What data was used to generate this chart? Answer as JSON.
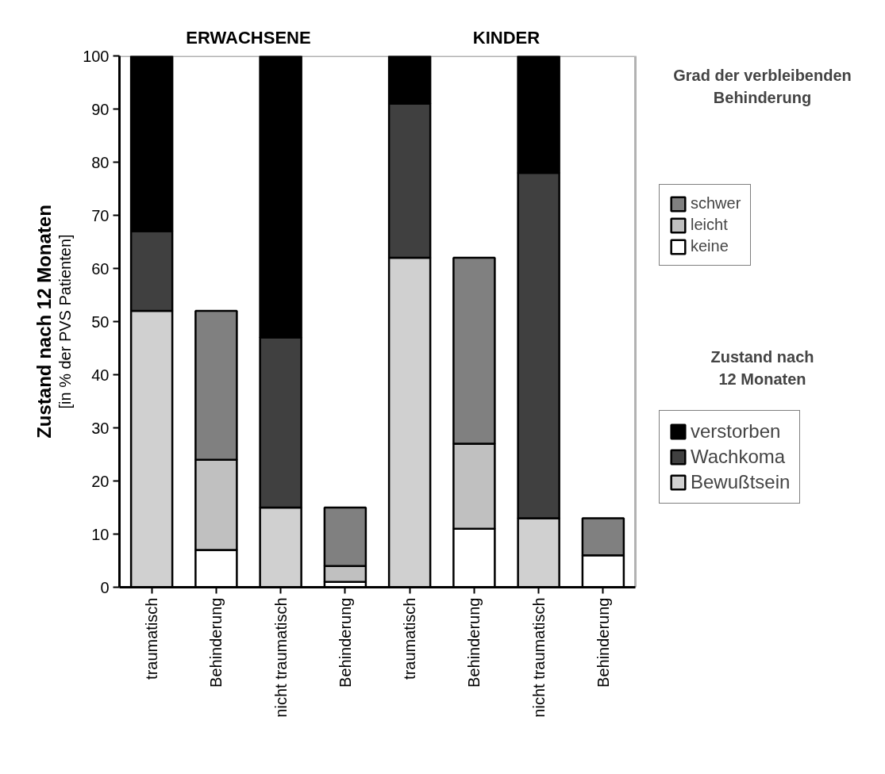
{
  "chart_data": {
    "type": "bar",
    "stacked": true,
    "categories": [
      "traumatisch",
      "Behinderung",
      "nicht traumatisch",
      "Behinderung",
      "traumatisch",
      "Behinderung",
      "nicht traumatisch",
      "Behinderung"
    ],
    "ylabel": "Zustand nach 12 Monaten",
    "annotations": [
      "ERWACHSENE",
      "KINDER",
      "[in % der PVS Patienten]",
      "Grad der verbleibenden Behinderung",
      "Zustand nach 12 Monaten"
    ],
    "series": [
      {
        "name": "Bewußtsein",
        "color": "#d0d0d0",
        "values": [
          52,
          null,
          15,
          null,
          62,
          null,
          13,
          null
        ]
      },
      {
        "name": "Wachkoma",
        "color": "#404040",
        "values": [
          15,
          null,
          32,
          null,
          29,
          null,
          65,
          null
        ]
      },
      {
        "name": "verstorben",
        "color": "#000000",
        "values": [
          33,
          null,
          53,
          null,
          9,
          null,
          22,
          null
        ]
      },
      {
        "name": "keine",
        "color": "#ffffff",
        "values": [
          null,
          7,
          null,
          1,
          null,
          11,
          null,
          6
        ]
      },
      {
        "name": "leicht",
        "color": "#c0c0c0",
        "values": [
          null,
          17,
          null,
          3,
          null,
          16,
          null,
          null
        ]
      },
      {
        "name": "schwer",
        "color": "#808080",
        "values": [
          null,
          28,
          null,
          11,
          null,
          35,
          null,
          7
        ]
      }
    ],
    "ylim": [
      0,
      100
    ],
    "yticks": [
      0,
      10,
      20,
      30,
      40,
      50,
      60,
      70,
      80,
      90,
      100
    ],
    "grid": false,
    "legend": "right"
  }
}
